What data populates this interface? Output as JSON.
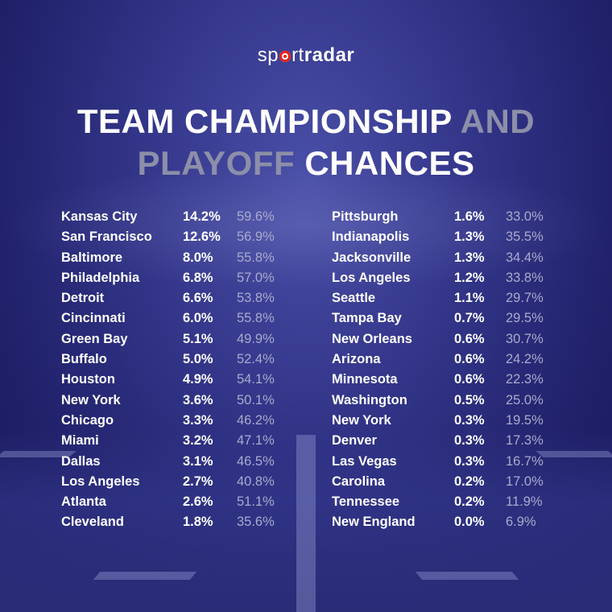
{
  "brand": {
    "part1": "sp",
    "part2": "rt",
    "part3": "radar"
  },
  "title": {
    "line1_white": "TEAM CHAMPIONSHIP",
    "line1_gray": "AND",
    "line2_gray": "PLAYOFF",
    "line2_white": "CHANCES"
  },
  "left_teams": [
    {
      "team": "Kansas City",
      "champ": "14.2%",
      "playoff": "59.6%"
    },
    {
      "team": "San Francisco",
      "champ": "12.6%",
      "playoff": "56.9%"
    },
    {
      "team": "Baltimore",
      "champ": "8.0%",
      "playoff": "55.8%"
    },
    {
      "team": "Philadelphia",
      "champ": "6.8%",
      "playoff": "57.0%"
    },
    {
      "team": "Detroit",
      "champ": "6.6%",
      "playoff": "53.8%"
    },
    {
      "team": "Cincinnati",
      "champ": "6.0%",
      "playoff": "55.8%"
    },
    {
      "team": "Green Bay",
      "champ": "5.1%",
      "playoff": "49.9%"
    },
    {
      "team": "Buffalo",
      "champ": "5.0%",
      "playoff": "52.4%"
    },
    {
      "team": "Houston",
      "champ": "4.9%",
      "playoff": "54.1%"
    },
    {
      "team": "New York",
      "champ": "3.6%",
      "playoff": "50.1%"
    },
    {
      "team": "Chicago",
      "champ": "3.3%",
      "playoff": "46.2%"
    },
    {
      "team": "Miami",
      "champ": "3.2%",
      "playoff": "47.1%"
    },
    {
      "team": "Dallas",
      "champ": "3.1%",
      "playoff": "46.5%"
    },
    {
      "team": "Los Angeles",
      "champ": "2.7%",
      "playoff": "40.8%"
    },
    {
      "team": "Atlanta",
      "champ": "2.6%",
      "playoff": "51.1%"
    },
    {
      "team": "Cleveland",
      "champ": "1.8%",
      "playoff": "35.6%"
    }
  ],
  "right_teams": [
    {
      "team": "Pittsburgh",
      "champ": "1.6%",
      "playoff": "33.0%"
    },
    {
      "team": "Indianapolis",
      "champ": "1.3%",
      "playoff": "35.5%"
    },
    {
      "team": "Jacksonville",
      "champ": "1.3%",
      "playoff": "34.4%"
    },
    {
      "team": "Los Angeles",
      "champ": "1.2%",
      "playoff": "33.8%"
    },
    {
      "team": "Seattle",
      "champ": "1.1%",
      "playoff": "29.7%"
    },
    {
      "team": "Tampa Bay",
      "champ": "0.7%",
      "playoff": "29.5%"
    },
    {
      "team": "New Orleans",
      "champ": "0.6%",
      "playoff": "30.7%"
    },
    {
      "team": "Arizona",
      "champ": "0.6%",
      "playoff": "24.2%"
    },
    {
      "team": "Minnesota",
      "champ": "0.6%",
      "playoff": "22.3%"
    },
    {
      "team": "Washington",
      "champ": "0.5%",
      "playoff": "25.0%"
    },
    {
      "team": "New York",
      "champ": "0.3%",
      "playoff": "19.5%"
    },
    {
      "team": "Denver",
      "champ": "0.3%",
      "playoff": "17.3%"
    },
    {
      "team": "Las Vegas",
      "champ": "0.3%",
      "playoff": "16.7%"
    },
    {
      "team": "Carolina",
      "champ": "0.2%",
      "playoff": "17.0%"
    },
    {
      "team": "Tennessee",
      "champ": "0.2%",
      "playoff": "11.9%"
    },
    {
      "team": "New England",
      "champ": "0.0%",
      "playoff": "6.9%"
    }
  ],
  "colors": {
    "background": "#2f3183",
    "brand_red": "#e32219",
    "text_white": "#ffffff",
    "text_gray": "#8c8fa8"
  }
}
